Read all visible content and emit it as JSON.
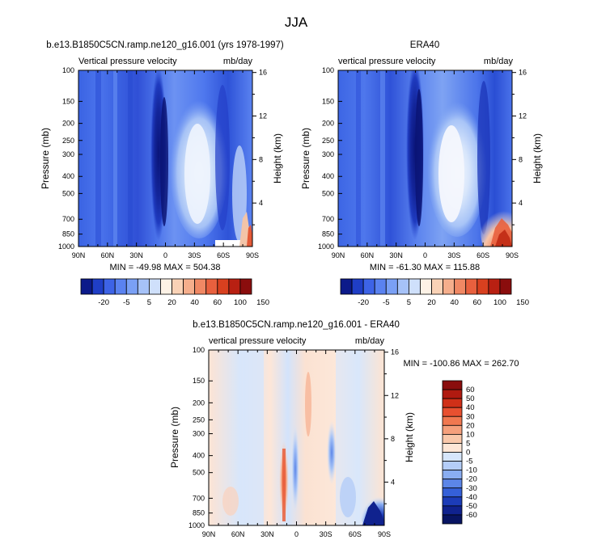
{
  "page_title": "JJA",
  "chart_data": [
    {
      "type": "heatmap",
      "title": "b.e13.B1850C5CN.ramp.ne120_g16.001 (yrs 1978-1997)",
      "subtitle_left": "Vertical pressure velocity",
      "subtitle_right": "mb/day",
      "xlabel": "",
      "ylabel": "Pressure (mb)",
      "y2label": "Height (km)",
      "x_ticks": [
        "90N",
        "60N",
        "30N",
        "0",
        "30S",
        "60S",
        "90S"
      ],
      "x_values": [
        90,
        60,
        30,
        0,
        -30,
        -60,
        -90
      ],
      "y_ticks": [
        "100",
        "150",
        "200",
        "250",
        "300",
        "400",
        "500",
        "700",
        "850",
        "1000"
      ],
      "y_values": [
        100,
        150,
        200,
        250,
        300,
        400,
        500,
        700,
        850,
        1000
      ],
      "y2_ticks": [
        "16",
        "12",
        "8",
        "4"
      ],
      "y2_values": [
        16,
        12,
        8,
        4
      ],
      "stats": "MIN = -49.98   MAX = 504.38",
      "colorbar": {
        "labels": [
          "-20",
          "-5",
          "5",
          "20",
          "40",
          "60",
          "100",
          "150"
        ],
        "colors": [
          "#0c1a8a",
          "#1f3ec6",
          "#3d63e6",
          "#5a82f0",
          "#7aa0f5",
          "#a6c2f8",
          "#cfe0fb",
          "#fdf2e6",
          "#f9d2b6",
          "#f5ae8c",
          "#f08864",
          "#e8603e",
          "#d8401f",
          "#b82012",
          "#8a0d0d"
        ]
      }
    },
    {
      "type": "heatmap",
      "title": "ERA40",
      "subtitle_left": "vertical pressure velocity",
      "subtitle_right": "mb/day",
      "xlabel": "",
      "ylabel": "Pressure (mb)",
      "y2label": "Height (km)",
      "x_ticks": [
        "90N",
        "60N",
        "30N",
        "0",
        "30S",
        "60S",
        "90S"
      ],
      "x_values": [
        90,
        60,
        30,
        0,
        -30,
        -60,
        -90
      ],
      "y_ticks": [
        "100",
        "150",
        "200",
        "250",
        "300",
        "400",
        "500",
        "700",
        "850",
        "1000"
      ],
      "y_values": [
        100,
        150,
        200,
        250,
        300,
        400,
        500,
        700,
        850,
        1000
      ],
      "y2_ticks": [
        "16",
        "12",
        "8",
        "4"
      ],
      "y2_values": [
        16,
        12,
        8,
        4
      ],
      "stats": "MIN = -61.30   MAX = 115.88",
      "colorbar": {
        "labels": [
          "-20",
          "-5",
          "5",
          "20",
          "40",
          "60",
          "100",
          "150"
        ],
        "colors": [
          "#0c1a8a",
          "#1f3ec6",
          "#3d63e6",
          "#5a82f0",
          "#7aa0f5",
          "#a6c2f8",
          "#cfe0fb",
          "#fdf2e6",
          "#f9d2b6",
          "#f5ae8c",
          "#f08864",
          "#e8603e",
          "#d8401f",
          "#b82012",
          "#8a0d0d"
        ]
      }
    },
    {
      "type": "heatmap",
      "title": "b.e13.B1850C5CN.ramp.ne120_g16.001 - ERA40",
      "subtitle_left": "vertical pressure velocity",
      "subtitle_right": "mb/day",
      "xlabel": "",
      "ylabel": "Pressure (mb)",
      "y2label": "Height (km)",
      "x_ticks": [
        "90N",
        "60N",
        "30N",
        "0",
        "30S",
        "60S",
        "90S"
      ],
      "x_values": [
        90,
        60,
        30,
        0,
        -30,
        -60,
        -90
      ],
      "y_ticks": [
        "100",
        "150",
        "200",
        "250",
        "300",
        "400",
        "500",
        "700",
        "850",
        "1000"
      ],
      "y_values": [
        100,
        150,
        200,
        250,
        300,
        400,
        500,
        700,
        850,
        1000
      ],
      "y2_ticks": [
        "16",
        "12",
        "8",
        "4"
      ],
      "y2_values": [
        16,
        12,
        8,
        4
      ],
      "stats": "MIN = -100.86   MAX = 262.70",
      "colorbar": {
        "labels": [
          "60",
          "50",
          "40",
          "30",
          "20",
          "10",
          "5",
          "0",
          "-5",
          "-10",
          "-20",
          "-30",
          "-40",
          "-50",
          "-60"
        ],
        "colors": [
          "#8a0d0d",
          "#b01a10",
          "#d03018",
          "#e85030",
          "#f07850",
          "#f5a07c",
          "#f9c8aa",
          "#fde6d6",
          "#d6e6fb",
          "#b4cdf8",
          "#8aaef2",
          "#5c86e8",
          "#3560d8",
          "#1c3cb8",
          "#10228e",
          "#081462"
        ]
      }
    }
  ]
}
